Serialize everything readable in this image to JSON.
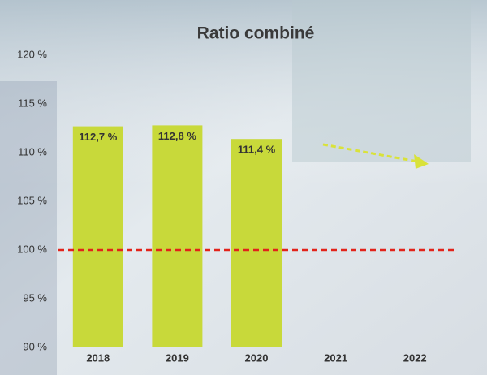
{
  "chart_data": {
    "type": "bar",
    "title": "Ratio combiné",
    "categories": [
      "2018",
      "2019",
      "2020",
      "2021",
      "2022"
    ],
    "values": [
      112.7,
      112.8,
      111.4,
      null,
      null
    ],
    "value_labels": [
      "112,7 %",
      "112,8 %",
      "111,4 %",
      null,
      null
    ],
    "color": "#c8d93a",
    "ylim": [
      90,
      120
    ],
    "yticks": [
      {
        "value": 90,
        "label": "90 %"
      },
      {
        "value": 95,
        "label": "95 %"
      },
      {
        "value": 100,
        "label": "100 %"
      },
      {
        "value": 105,
        "label": "105 %"
      },
      {
        "value": 110,
        "label": "110 %"
      },
      {
        "value": 115,
        "label": "115 %"
      },
      {
        "value": 120,
        "label": "120 %"
      }
    ],
    "reference_line": 100,
    "reference_color": "#e2231a",
    "grid": false
  }
}
